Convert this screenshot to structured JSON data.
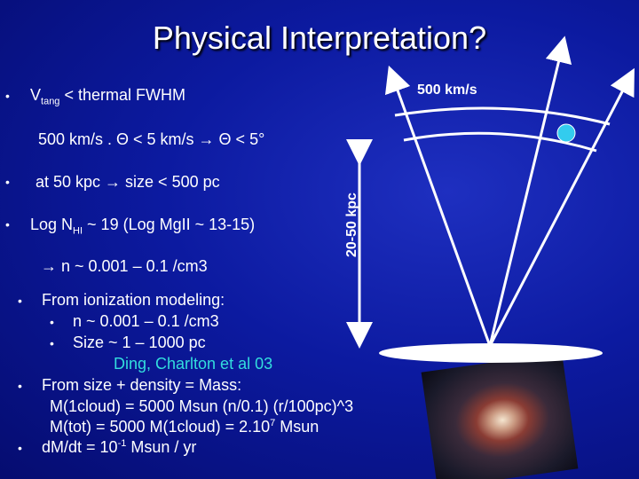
{
  "slide": {
    "title": "Physical Interpretation?",
    "bullet": "•",
    "lines": {
      "l1_main": "V",
      "l1_sub": "tang",
      "l1_rest": " < thermal FWHM",
      "l2": "500 km/s . Θ < 5 km/s → Θ < 5°",
      "l3": "at 50 kpc → size < 500 pc",
      "l4_main": "Log N",
      "l4_sub": "HI",
      "l4_rest": " ~ 19 (Log MgII ~ 13-15)",
      "l5": "→  n ~ 0.001 – 0.1 /cm3",
      "l6": "From ionization modeling:",
      "l7": "n  ~ 0.001 – 0.1 /cm3",
      "l8": "Size ~ 1 – 1000 pc",
      "citation": "Ding, Charlton et al 03",
      "l9": "From size + density = Mass:",
      "l10": "M(1cloud) = 5000 Msun (n/0.1) (r/100pc)^3",
      "l11_main": "M(tot) = 5000 M(1cloud) = 2.10",
      "l11_sup": "7",
      "l11_rest": " Msun",
      "l12_main": "dM/dt = 10",
      "l12_sup": "-1",
      "l12_rest": "  Msun / yr"
    },
    "diagram": {
      "velocity_label": "500 km/s",
      "distance_label": "20-50 kpc",
      "cloud_color": "#33ccee"
    }
  }
}
